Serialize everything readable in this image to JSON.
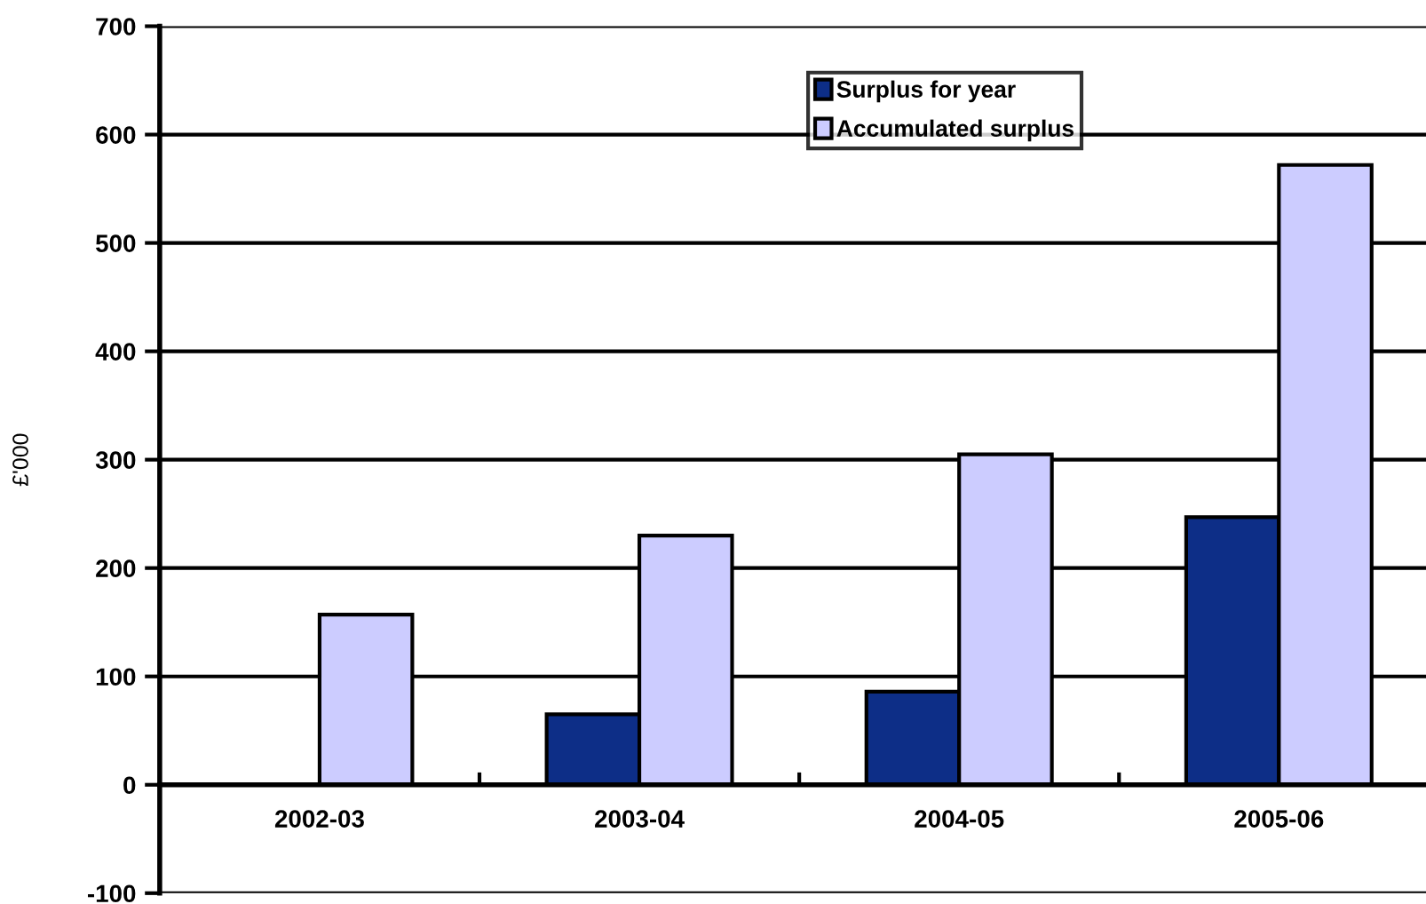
{
  "chart_data": {
    "type": "bar",
    "ylabel": "£'000",
    "categories": [
      "2002-03",
      "2003-04",
      "2004-05",
      "2005-06"
    ],
    "series": [
      {
        "name": "Surplus for year",
        "color": "#0d2e87",
        "values": [
          null,
          65,
          86,
          247
        ]
      },
      {
        "name": "Accumulated surplus",
        "color": "#ccccff",
        "values": [
          157,
          230,
          305,
          572
        ]
      }
    ],
    "ylim": [
      -100,
      700
    ],
    "yticks": [
      -100,
      0,
      100,
      200,
      300,
      400,
      500,
      600,
      700
    ],
    "grid": "y",
    "legend": "top"
  }
}
